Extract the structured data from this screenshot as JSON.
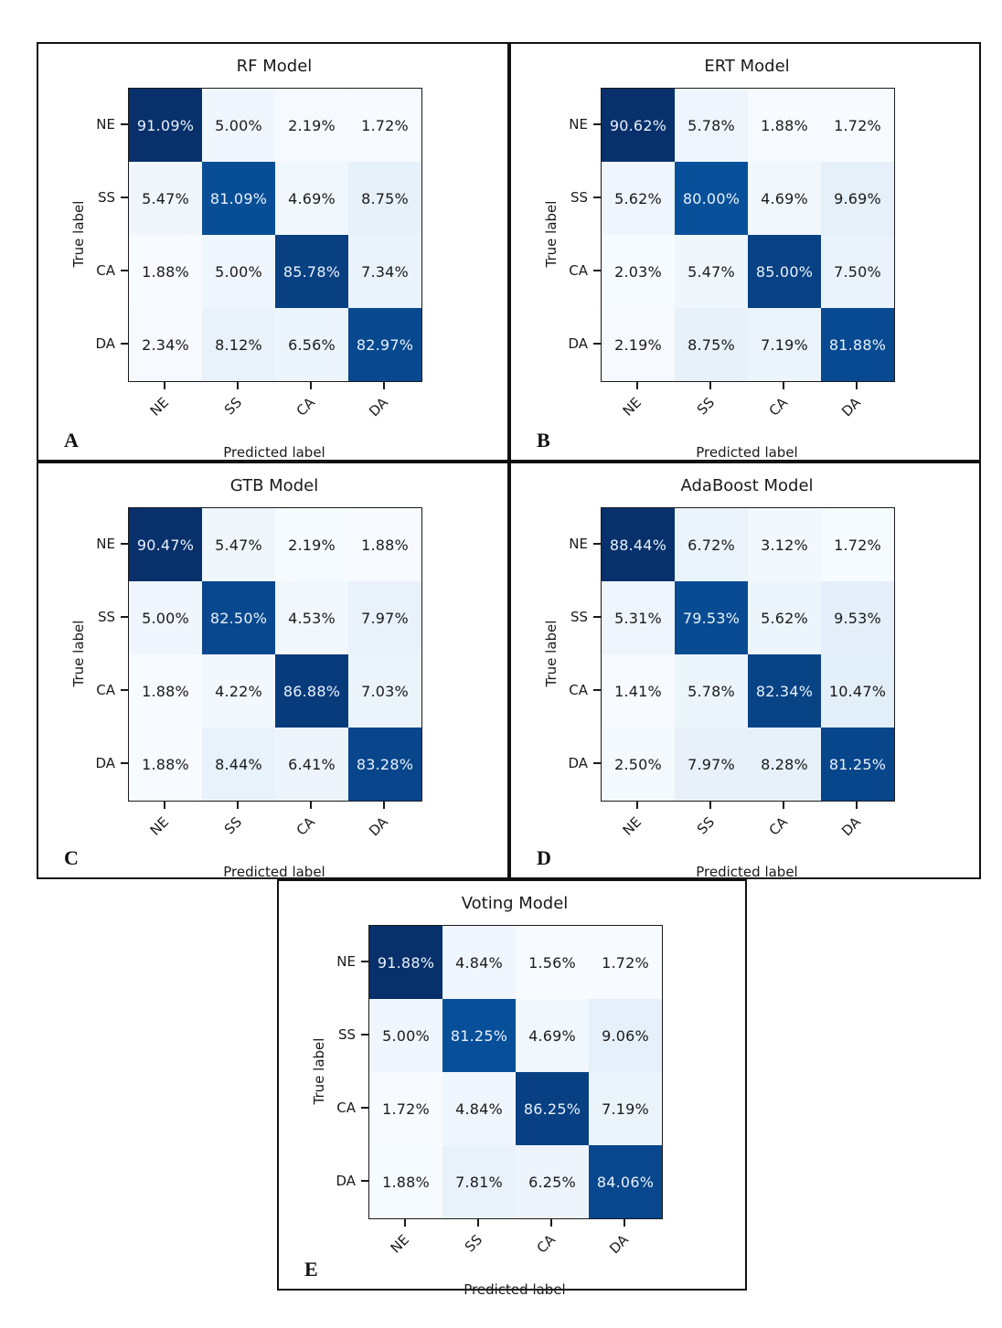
{
  "figure": {
    "classes": [
      "NE",
      "SS",
      "CA",
      "DA"
    ],
    "x_axis_label": "Predicted label",
    "y_axis_label": "True label",
    "value_suffix": "%",
    "colormap": {
      "name": "Blues",
      "stops": [
        "#f7fbff",
        "#deebf7",
        "#c6dbef",
        "#9ecae1",
        "#6baed6",
        "#4292c6",
        "#2171b5",
        "#08519c",
        "#08306b"
      ],
      "dark_cell_text_color": "#e9f2fb",
      "light_cell_text_color": "#1a1a1a"
    },
    "frame_color": "#111111"
  },
  "chart_data": [
    {
      "type": "heatmap",
      "title": "RF Model",
      "panel_letter": "A",
      "xlabel": "Predicted label",
      "ylabel": "True label",
      "x_categories": [
        "NE",
        "SS",
        "CA",
        "DA"
      ],
      "y_categories": [
        "NE",
        "SS",
        "CA",
        "DA"
      ],
      "values_percent": [
        [
          91.09,
          5.0,
          2.19,
          1.72
        ],
        [
          5.47,
          81.09,
          4.69,
          8.75
        ],
        [
          1.88,
          5.0,
          85.78,
          7.34
        ],
        [
          2.34,
          8.12,
          6.56,
          82.97
        ]
      ]
    },
    {
      "type": "heatmap",
      "title": "ERT Model",
      "panel_letter": "B",
      "xlabel": "Predicted label",
      "ylabel": "True label",
      "x_categories": [
        "NE",
        "SS",
        "CA",
        "DA"
      ],
      "y_categories": [
        "NE",
        "SS",
        "CA",
        "DA"
      ],
      "values_percent": [
        [
          90.62,
          5.78,
          1.88,
          1.72
        ],
        [
          5.62,
          80.0,
          4.69,
          9.69
        ],
        [
          2.03,
          5.47,
          85.0,
          7.5
        ],
        [
          2.19,
          8.75,
          7.19,
          81.88
        ]
      ]
    },
    {
      "type": "heatmap",
      "title": "GTB Model",
      "panel_letter": "C",
      "xlabel": "Predicted label",
      "ylabel": "True label",
      "x_categories": [
        "NE",
        "SS",
        "CA",
        "DA"
      ],
      "y_categories": [
        "NE",
        "SS",
        "CA",
        "DA"
      ],
      "values_percent": [
        [
          90.47,
          5.47,
          2.19,
          1.88
        ],
        [
          5.0,
          82.5,
          4.53,
          7.97
        ],
        [
          1.88,
          4.22,
          86.88,
          7.03
        ],
        [
          1.88,
          8.44,
          6.41,
          83.28
        ]
      ]
    },
    {
      "type": "heatmap",
      "title": "AdaBoost Model",
      "panel_letter": "D",
      "xlabel": "Predicted label",
      "ylabel": "True label",
      "x_categories": [
        "NE",
        "SS",
        "CA",
        "DA"
      ],
      "y_categories": [
        "NE",
        "SS",
        "CA",
        "DA"
      ],
      "values_percent": [
        [
          88.44,
          6.72,
          3.12,
          1.72
        ],
        [
          5.31,
          79.53,
          5.62,
          9.53
        ],
        [
          1.41,
          5.78,
          82.34,
          10.47
        ],
        [
          2.5,
          7.97,
          8.28,
          81.25
        ]
      ]
    },
    {
      "type": "heatmap",
      "title": "Voting Model",
      "panel_letter": "E",
      "xlabel": "Predicted label",
      "ylabel": "True label",
      "x_categories": [
        "NE",
        "SS",
        "CA",
        "DA"
      ],
      "y_categories": [
        "NE",
        "SS",
        "CA",
        "DA"
      ],
      "values_percent": [
        [
          91.88,
          4.84,
          1.56,
          1.72
        ],
        [
          5.0,
          81.25,
          4.69,
          9.06
        ],
        [
          1.72,
          4.84,
          86.25,
          7.19
        ],
        [
          1.88,
          7.81,
          6.25,
          84.06
        ]
      ]
    }
  ]
}
